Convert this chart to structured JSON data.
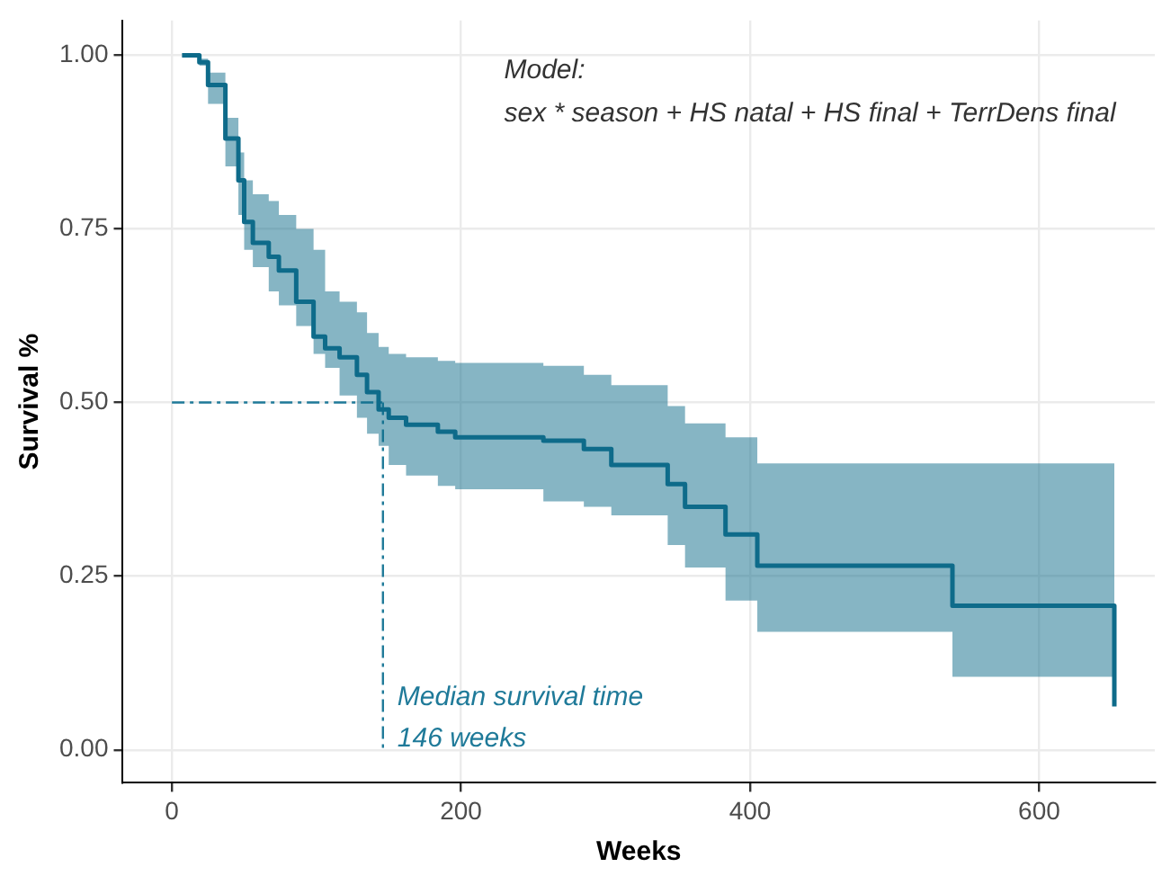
{
  "chart_data": {
    "type": "step",
    "xlabel": "Weeks",
    "ylabel": "Survival %",
    "x": [
      7,
      19,
      25,
      37,
      46,
      50,
      56,
      67,
      74,
      86,
      98,
      106,
      116,
      128,
      135,
      143,
      150,
      162,
      184,
      196,
      257,
      285,
      304,
      343,
      355,
      383,
      405,
      540,
      652
    ],
    "series": [
      {
        "color": "#0e6b8a",
        "values": [
          1.0,
          0.99,
          0.957,
          0.88,
          0.82,
          0.76,
          0.73,
          0.71,
          0.69,
          0.645,
          0.595,
          0.578,
          0.565,
          0.54,
          0.515,
          0.49,
          0.478,
          0.468,
          0.458,
          0.45,
          0.445,
          0.433,
          0.41,
          0.3825,
          0.35,
          0.31,
          0.265,
          0.2075,
          0.0625
        ],
        "lower": [
          1.0,
          0.985,
          0.93,
          0.84,
          0.77,
          0.72,
          0.695,
          0.66,
          0.64,
          0.61,
          0.57,
          0.55,
          0.51,
          0.478,
          0.455,
          0.4375,
          0.41,
          0.395,
          0.38,
          0.375,
          0.3575,
          0.35,
          0.3375,
          0.295,
          0.2625,
          0.215,
          0.17,
          0.105,
          0.105
        ],
        "upper": [
          1.0,
          0.995,
          0.975,
          0.91,
          0.86,
          0.82,
          0.8,
          0.79,
          0.77,
          0.75,
          0.72,
          0.66,
          0.645,
          0.63,
          0.6,
          0.58,
          0.57,
          0.565,
          0.56,
          0.557,
          0.553,
          0.54,
          0.525,
          0.495,
          0.47,
          0.45,
          0.4125,
          0.4125,
          0.4125
        ]
      }
    ],
    "xlim": [
      -34,
      680
    ],
    "xticks": [
      0,
      200,
      400,
      600
    ],
    "ylim": [
      -0.0475,
      1.05
    ],
    "yticks": [
      {
        "value": 0,
        "label": "0.00"
      },
      {
        "value": 0.25,
        "label": "0.25"
      },
      {
        "value": 0.5,
        "label": "0.50"
      },
      {
        "value": 0.75,
        "label": "0.75"
      },
      {
        "value": 1,
        "label": "1.00"
      }
    ],
    "grid": true,
    "legend": false,
    "marker": "none",
    "line_style": "solid",
    "ref_lines": [
      {
        "axis": "y",
        "value": 0.5,
        "color": "#1f7a99",
        "line_style": "dashdot"
      },
      {
        "axis": "x",
        "value": 146,
        "color": "#1f7a99",
        "line_style": "dashdot"
      }
    ],
    "annotations": [
      "Model:\nsex * season + HS natal + HS final + TerrDens final",
      {
        "text": "Median survival time\n146 weeks",
        "x": 146,
        "y": 0.0
      }
    ]
  }
}
